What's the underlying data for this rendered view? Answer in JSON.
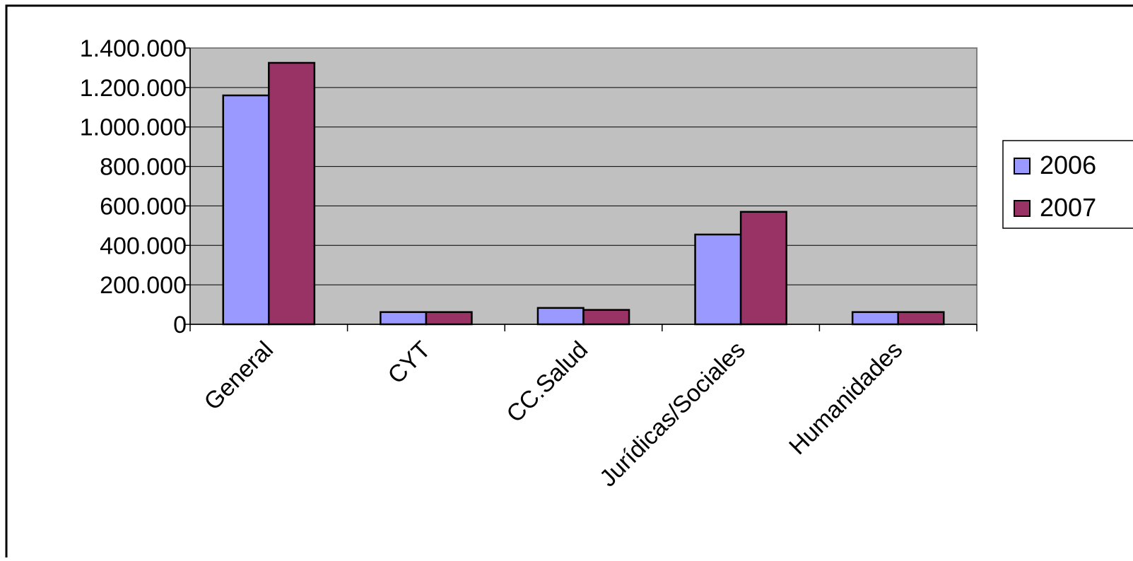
{
  "chart_data": {
    "type": "bar",
    "title": "",
    "xlabel": "",
    "ylabel": "",
    "categories": [
      "General",
      "CYT",
      "CC.Salud",
      "Jurídicas/Sociales",
      "Humanidades"
    ],
    "series": [
      {
        "name": "2006",
        "color": "#9999ff",
        "values": [
          1160000,
          62000,
          83000,
          455000,
          62000
        ]
      },
      {
        "name": "2007",
        "color": "#993366",
        "values": [
          1325000,
          62000,
          73000,
          570000,
          62000
        ]
      }
    ],
    "ylim": [
      0,
      1400000
    ],
    "yticks": [
      {
        "value": 0,
        "label": "0"
      },
      {
        "value": 200000,
        "label": "200.000"
      },
      {
        "value": 400000,
        "label": "400.000"
      },
      {
        "value": 600000,
        "label": "600.000"
      },
      {
        "value": 800000,
        "label": "800.000"
      },
      {
        "value": 1000000,
        "label": "1.000.000"
      },
      {
        "value": 1200000,
        "label": "1.200.000"
      },
      {
        "value": 1400000,
        "label": "1.400.000"
      }
    ],
    "grid": true,
    "plot_background": "#c0c0c0",
    "legend_position": "right"
  }
}
